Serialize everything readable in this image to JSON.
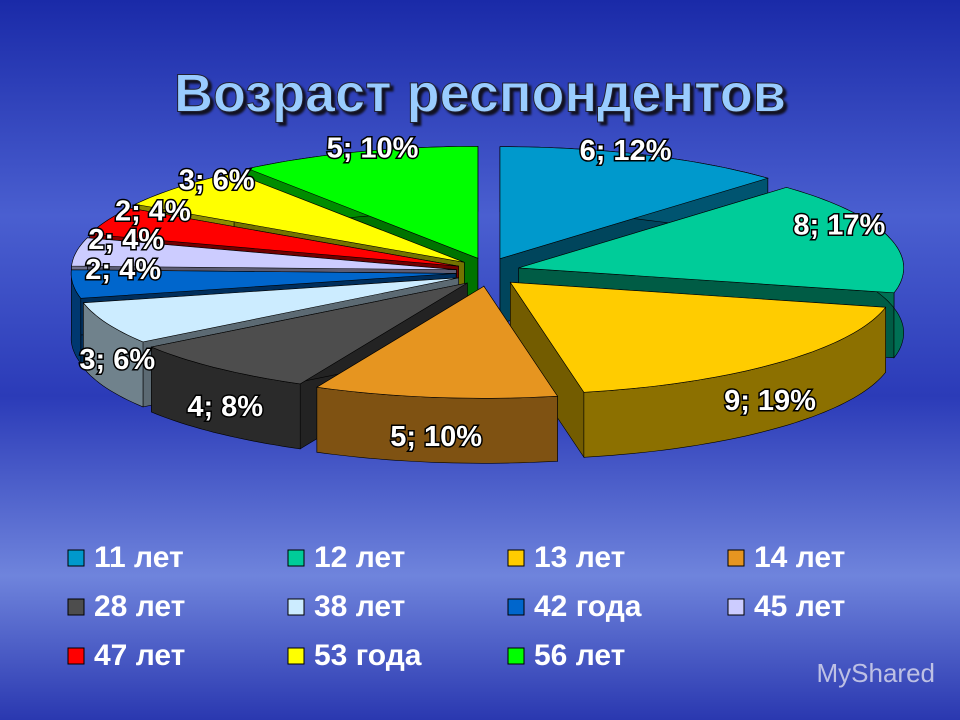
{
  "chart_data": {
    "type": "pie3d",
    "title": "Возраст респондентов",
    "categories": [
      "11 лет",
      "12 лет",
      "13 лет",
      "14 лет",
      "28 лет",
      "38 лет",
      "42 года",
      "45 лет",
      "47 лет",
      "53 года",
      "56 лет"
    ],
    "values": [
      6,
      8,
      9,
      5,
      4,
      3,
      2,
      2,
      2,
      3,
      5
    ],
    "value_labels": [
      "6; 12%",
      "8; 17%",
      "9; 19%",
      "5; 10%",
      "4; 8%",
      "3; 6%",
      "2; 4%",
      "2; 4%",
      "2; 4%",
      "3; 6%",
      "5; 10%"
    ],
    "colors": [
      "#0099cc",
      "#00cc99",
      "#ffcc00",
      "#e69520",
      "#4d4d4d",
      "#ccecff",
      "#0066cc",
      "#ccccff",
      "#ff0000",
      "#ffff00",
      "#00ff00"
    ],
    "legend": "bottom"
  },
  "watermark": "MyShared"
}
